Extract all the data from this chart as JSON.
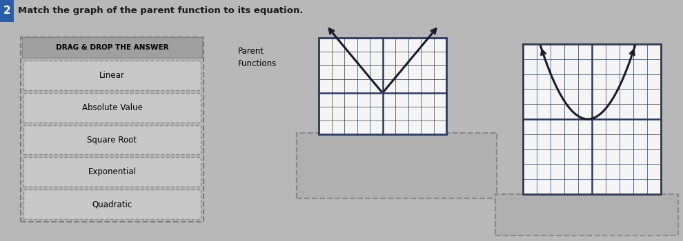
{
  "title_number": "2",
  "instruction": "Match the graph of the parent function to its equation.",
  "drag_drop_label": "DRAG & DROP THE ANSWER",
  "parent_functions_label": "Parent\nFunctions",
  "items": [
    "Linear",
    "Absolute Value",
    "Square Root",
    "Exponential",
    "Quadratic"
  ],
  "bg_color": "#b8b8b8",
  "graph_bg": "#f5f5f5",
  "grid_color": "#2a3a5c",
  "curve_color": "#1a1a2e",
  "header_bg": "#a0a0a0",
  "item_bg": "#c8c8c8",
  "drop_bg": "#b0b0b0",
  "figsize": [
    9.9,
    3.5
  ],
  "dpi": 100
}
